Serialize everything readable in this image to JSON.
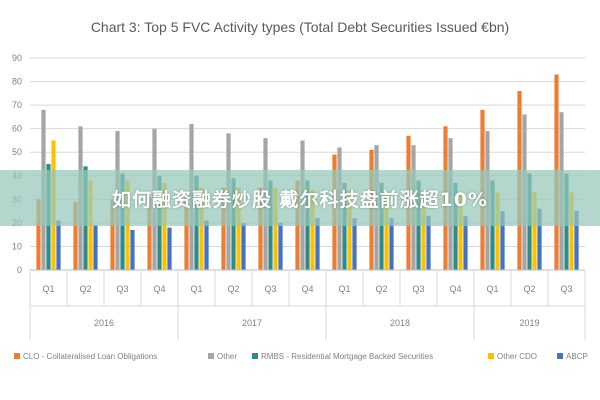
{
  "chart_data": {
    "type": "bar",
    "title": "Chart 3: Top 5 FVC Activity types (Total Debt Securities Issued €bn)",
    "xlabel": "",
    "ylabel": "",
    "ylim": [
      0,
      90
    ],
    "yticks": [
      0,
      10,
      20,
      30,
      40,
      50,
      60,
      70,
      80,
      90
    ],
    "grid": true,
    "legend_position": "bottom",
    "categories": [
      "Q1",
      "Q2",
      "Q3",
      "Q4",
      "Q1",
      "Q2",
      "Q3",
      "Q4",
      "Q1",
      "Q2",
      "Q3",
      "Q4",
      "Q1",
      "Q2",
      "Q3"
    ],
    "years": [
      {
        "label": "2016",
        "start": 0,
        "end": 3
      },
      {
        "label": "2017",
        "start": 4,
        "end": 7
      },
      {
        "label": "2018",
        "start": 8,
        "end": 11
      },
      {
        "label": "2019",
        "start": 12,
        "end": 14
      }
    ],
    "series": [
      {
        "name": "CLO - Collateralised Loan Obligations",
        "color": "#ED7D31",
        "values": [
          30,
          29,
          30,
          31,
          32,
          35,
          35,
          38,
          49,
          51,
          57,
          61,
          68,
          76,
          83
        ]
      },
      {
        "name": "Other",
        "color": "#A5A5A5",
        "values": [
          68,
          61,
          59,
          60,
          62,
          58,
          56,
          55,
          52,
          53,
          53,
          56,
          59,
          66,
          67
        ]
      },
      {
        "name": "RMBS - Residential Mortgage Backed Securities",
        "color": "#2E8B8B",
        "values": [
          45,
          44,
          41,
          40,
          40,
          39,
          38,
          38,
          37,
          37,
          38,
          37,
          38,
          41,
          41
        ]
      },
      {
        "name": "Other CDO",
        "color": "#FFC000",
        "values": [
          55,
          38,
          38,
          37,
          35,
          35,
          35,
          34,
          34,
          33,
          33,
          33,
          33,
          33,
          33
        ]
      },
      {
        "name": "ABCP",
        "color": "#4472C4",
        "values": [
          21,
          19,
          17,
          18,
          21,
          20,
          20,
          22,
          22,
          22,
          23,
          23,
          25,
          26,
          25
        ]
      }
    ]
  },
  "overlay": {
    "banner_text": "如何融资融券炒股 戴尔科技盘前涨超10%"
  }
}
